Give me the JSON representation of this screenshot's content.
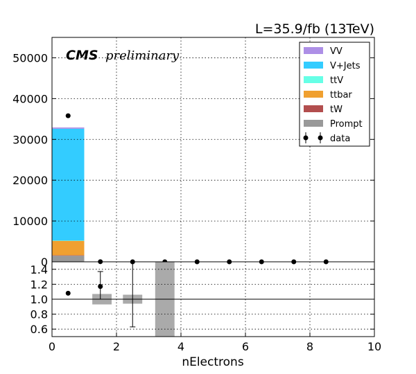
{
  "header": {
    "lumi_text": "L=35.9/fb (13TeV)",
    "cms_label": "CMS",
    "preliminary_label": "preliminary"
  },
  "chart_data": {
    "type": "bar",
    "stacked": true,
    "x_variable": "nElectrons",
    "xlabel": "nElectrons",
    "xlim": [
      0,
      10
    ],
    "bin_edges": [
      0,
      1,
      2,
      3,
      4,
      5,
      6,
      7,
      8,
      9,
      10
    ],
    "x_ticks": [
      0,
      2,
      4,
      6,
      8,
      10
    ],
    "x_tick_labels": [
      "0",
      "2",
      "4",
      "6",
      "8",
      "10"
    ],
    "grid": true,
    "legend_position": "top-right",
    "main_panel": {
      "ylim": [
        0,
        55000
      ],
      "y_ticks": [
        0,
        10000,
        20000,
        30000,
        40000,
        50000
      ],
      "y_tick_labels": [
        "0",
        "10000",
        "20000",
        "30000",
        "40000",
        "50000"
      ],
      "series": [
        {
          "name": "Prompt",
          "color": "#999999",
          "values": [
            1500,
            0,
            0,
            0,
            0,
            0,
            0,
            0,
            0,
            0
          ]
        },
        {
          "name": "tW",
          "color": "#b24e4e",
          "values": [
            100,
            0,
            0,
            0,
            0,
            0,
            0,
            0,
            0,
            0
          ]
        },
        {
          "name": "ttbar",
          "color": "#f0a030",
          "values": [
            3600,
            0,
            0,
            0,
            0,
            0,
            0,
            0,
            0,
            0
          ]
        },
        {
          "name": "ttV",
          "color": "#66ffe6",
          "values": [
            20,
            0,
            0,
            0,
            0,
            0,
            0,
            0,
            0,
            0
          ]
        },
        {
          "name": "V+Jets",
          "color": "#33ccff",
          "values": [
            27400,
            0,
            0,
            0,
            0,
            0,
            0,
            0,
            0,
            0
          ]
        },
        {
          "name": "VV",
          "color": "#ad8fe6",
          "values": [
            300,
            0,
            0,
            0,
            0,
            0,
            0,
            0,
            0,
            0
          ]
        }
      ],
      "data": {
        "name": "data",
        "x": [
          0.5,
          1.5,
          2.5,
          3.5,
          4.5,
          5.5,
          6.5,
          7.5,
          8.5
        ],
        "y": [
          35800,
          30,
          5,
          0,
          0,
          0,
          0,
          0,
          0
        ]
      }
    },
    "ratio_panel": {
      "ylim": [
        0.5,
        1.5
      ],
      "y_ticks": [
        0.6,
        0.8,
        1.0,
        1.2,
        1.4
      ],
      "y_tick_labels": [
        "0.6",
        "0.8",
        "1.0",
        "1.2",
        "1.4"
      ],
      "reference_line": 1.0,
      "uncertainty_bands": [
        {
          "x_range": [
            1.25,
            1.85
          ],
          "y_range": [
            0.93,
            1.07
          ],
          "color": "#aaaaaa"
        },
        {
          "x_range": [
            2.2,
            2.8
          ],
          "y_range": [
            0.94,
            1.06
          ],
          "color": "#aaaaaa"
        },
        {
          "x_range": [
            3.2,
            3.8
          ],
          "y_range": [
            0.5,
            1.5
          ],
          "color": "#aaaaaa"
        }
      ],
      "points": [
        {
          "x": 0.5,
          "y": 1.08,
          "yerr_low": 0,
          "yerr_high": 0
        },
        {
          "x": 1.5,
          "y": 1.17,
          "yerr_low": 0.17,
          "yerr_high": 0.2
        },
        {
          "x": 2.5,
          "y": null,
          "err_low": 0.63,
          "err_high": 1.5
        }
      ]
    }
  }
}
